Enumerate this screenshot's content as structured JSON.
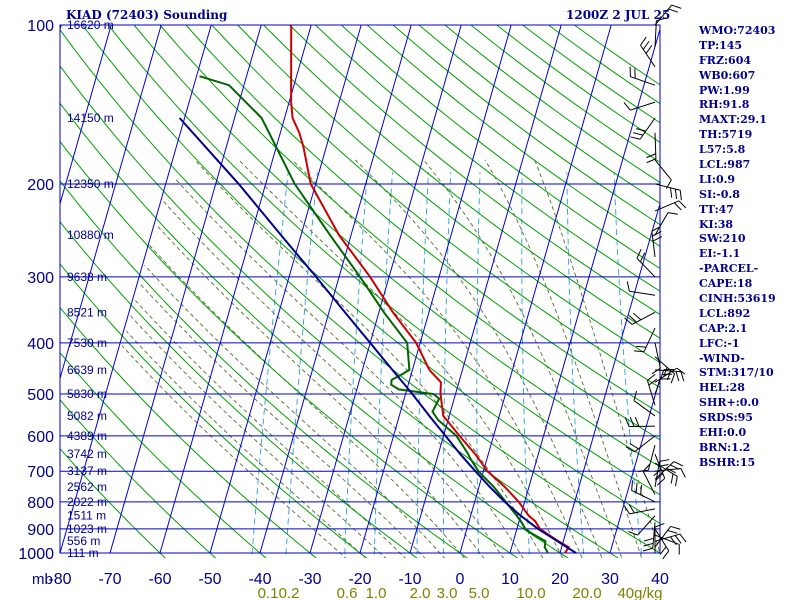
{
  "header": {
    "station": "KIAD (72403) Sounding",
    "time": "1200Z  2 JUL 25"
  },
  "chart_data": {
    "type": "line",
    "title": "KIAD (72403) Sounding",
    "chart_kind": "skew-T log-P",
    "y_axis": {
      "label": "mb",
      "scale": "log",
      "range": [
        1000,
        100
      ],
      "ticks": [
        100,
        200,
        300,
        400,
        500,
        600,
        700,
        800,
        900,
        1000
      ]
    },
    "x_axis": {
      "unit": "°C",
      "range": [
        -80,
        40
      ],
      "ticks": [
        -80,
        -70,
        -60,
        -50,
        -40,
        -30,
        -20,
        -10,
        0,
        10,
        20,
        30,
        40
      ]
    },
    "height_labels": [
      {
        "p": 100,
        "label": "16620 m"
      },
      {
        "p": 150,
        "label": "14150 m"
      },
      {
        "p": 200,
        "label": "12350 m"
      },
      {
        "p": 250,
        "label": "10880 m"
      },
      {
        "p": 300,
        "label": "9638 m"
      },
      {
        "p": 350,
        "label": "8521 m"
      },
      {
        "p": 400,
        "label": "7530 m"
      },
      {
        "p": 450,
        "label": "6639 m"
      },
      {
        "p": 500,
        "label": "5830 m"
      },
      {
        "p": 550,
        "label": "5082 m"
      },
      {
        "p": 600,
        "label": "4389 m"
      },
      {
        "p": 650,
        "label": "3742 m"
      },
      {
        "p": 700,
        "label": "3137 m"
      },
      {
        "p": 750,
        "label": "2562 m"
      },
      {
        "p": 800,
        "label": "2022 m"
      },
      {
        "p": 850,
        "label": "1511 m"
      },
      {
        "p": 900,
        "label": "1023 m"
      },
      {
        "p": 950,
        "label": "556 m"
      },
      {
        "p": 1000,
        "label": "111 m"
      }
    ],
    "mixing_ratio_labels": [
      "0.1",
      "0.2",
      "0.6",
      "1.0",
      "2.0",
      "3.0",
      "5.0",
      "10.0",
      "20.0",
      "40g/kg"
    ],
    "series": [
      {
        "color": "#cc0000",
        "points": [
          [
            1000,
            21.0
          ],
          [
            975,
            21.4
          ],
          [
            950,
            19.0
          ],
          [
            925,
            16.8
          ],
          [
            900,
            14.6
          ],
          [
            870,
            13.2
          ],
          [
            850,
            11.6
          ],
          [
            800,
            8.8
          ],
          [
            750,
            5.2
          ],
          [
            700,
            0.8
          ],
          [
            650,
            -2.6
          ],
          [
            600,
            -6.8
          ],
          [
            550,
            -11.2
          ],
          [
            500,
            -13.0
          ],
          [
            475,
            -13.6
          ],
          [
            450,
            -16.6
          ],
          [
            400,
            -20.8
          ],
          [
            350,
            -27.2
          ],
          [
            300,
            -33.8
          ],
          [
            250,
            -42.4
          ],
          [
            200,
            -51.0
          ],
          [
            170,
            -54.6
          ],
          [
            160,
            -56.2
          ],
          [
            150,
            -58.4
          ],
          [
            140,
            -59.6
          ],
          [
            100,
            -64.0
          ]
        ]
      },
      {
        "color": "#006400",
        "points": [
          [
            1000,
            17.6
          ],
          [
            975,
            16.6
          ],
          [
            950,
            16.4
          ],
          [
            920,
            13.4
          ],
          [
            900,
            11.6
          ],
          [
            880,
            10.8
          ],
          [
            850,
            9.2
          ],
          [
            800,
            6.2
          ],
          [
            750,
            3.0
          ],
          [
            700,
            -1.0
          ],
          [
            660,
            -3.5
          ],
          [
            650,
            -4.0
          ],
          [
            600,
            -7.4
          ],
          [
            560,
            -12.0
          ],
          [
            540,
            -13.6
          ],
          [
            510,
            -13.0
          ],
          [
            500,
            -14.4
          ],
          [
            490,
            -21.6
          ],
          [
            480,
            -23.4
          ],
          [
            470,
            -23.6
          ],
          [
            460,
            -22.0
          ],
          [
            450,
            -20.6
          ],
          [
            400,
            -22.6
          ],
          [
            350,
            -29.0
          ],
          [
            300,
            -35.8
          ],
          [
            250,
            -44.2
          ],
          [
            200,
            -54.2
          ],
          [
            150,
            -64.6
          ],
          [
            130,
            -73.0
          ],
          [
            125,
            -79.4
          ]
        ]
      },
      {
        "color": "#00008b",
        "points": [
          [
            1000,
            23.2
          ],
          [
            950,
            18.8
          ],
          [
            900,
            14.2
          ],
          [
            850,
            10.0
          ],
          [
            800,
            6.0
          ],
          [
            750,
            2.2
          ],
          [
            700,
            -1.6
          ],
          [
            650,
            -5.6
          ],
          [
            600,
            -9.6
          ],
          [
            550,
            -14.0
          ],
          [
            500,
            -18.6
          ],
          [
            450,
            -24.0
          ],
          [
            400,
            -30.0
          ],
          [
            350,
            -36.8
          ],
          [
            300,
            -44.6
          ],
          [
            250,
            -54.0
          ],
          [
            200,
            -65.4
          ],
          [
            150,
            -81.0
          ]
        ]
      }
    ],
    "wind_pressures": [
      1000,
      975,
      950,
      925,
      900,
      875,
      850,
      825,
      800,
      775,
      750,
      725,
      700,
      675,
      650,
      625,
      600,
      575,
      550,
      525,
      500,
      475,
      450,
      425,
      400,
      375,
      350,
      325,
      300,
      275,
      250,
      225,
      200,
      180,
      160,
      150,
      140,
      130,
      120,
      110,
      100
    ],
    "grid": true
  },
  "indices": [
    "WMO:72403",
    "TP:145",
    "FRZ:604",
    "WB0:607",
    "PW:1.99",
    "RH:91.8",
    "MAXT:29.1",
    "TH:5719",
    "L57:5.8",
    "LCL:987",
    "LI:0.9",
    "SI:-0.8",
    "TT:47",
    "KI:38",
    "SW:210",
    "EI:-1.1",
    "-PARCEL-",
    "CAPE:18",
    "CINH:53619",
    "LCL:892",
    "CAP:2.1",
    "LFC:-1",
    "-WIND-",
    "STM:317/10",
    "HEL:28",
    "SHR+:0.0",
    "SRDS:95",
    "EHI:0.0",
    "BRN:1.2",
    "BSHR:15"
  ],
  "colors": {
    "background": "#ffffff",
    "isobar_isotherm": "#0000cd",
    "dry_adiabat": "#00a000",
    "moist_adiabat": "#556b2f",
    "mixing_ratio": "#2a9fd6",
    "temperature": "#cc0000",
    "dewpoint": "#006400",
    "parcel": "#00008b",
    "text": "#00008b"
  }
}
